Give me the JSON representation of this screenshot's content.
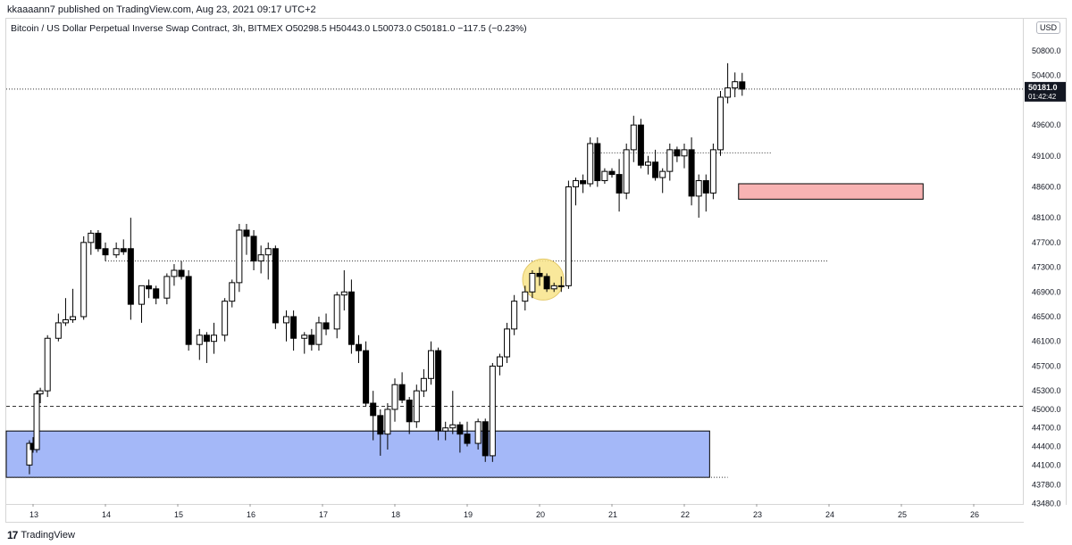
{
  "header": {
    "published": "kkaaaann7 published on TradingView.com, Aug 23, 2021 09:17 UTC+2"
  },
  "symbol": {
    "title": "Bitcoin / US Dollar Perpetual Inverse Swap Contract, 3h, BITMEX  O50298.5  H50443.0  L50073.0  C50181.0  −117.5 (−0.23%)"
  },
  "currency_badge": "USD",
  "footer": {
    "brand": "TradingView",
    "logo_icon": "tradingview-logo-icon"
  },
  "chart_data": {
    "type": "candlestick",
    "x_ticks": [
      "13",
      "14",
      "15",
      "16",
      "17",
      "18",
      "19",
      "20",
      "21",
      "22",
      "23",
      "24",
      "25",
      "26"
    ],
    "y_ticks": [
      50800.0,
      50400.0,
      49600.0,
      49100.0,
      48600.0,
      48100.0,
      47700.0,
      47300.0,
      46900.0,
      46500.0,
      46100.0,
      45700.0,
      45300.0,
      45000.0,
      44700.0,
      44400.0,
      44100.0,
      43780.0,
      43480.0
    ],
    "y_tick_labels": [
      "50800.0",
      "50400.0",
      "49600.0",
      "49100.0",
      "48600.0",
      "48100.0",
      "47700.0",
      "47300.0",
      "46900.0",
      "46500.0",
      "46100.0",
      "45700.0",
      "45300.0",
      "45000.0",
      "44700.0",
      "44400.0",
      "44100.0",
      "43780.0",
      "43480.0"
    ],
    "last_price": {
      "value": 50181.0,
      "label": "50181.0",
      "countdown": "01:42:42"
    },
    "colors": {
      "up": "#ffffff",
      "down": "#000000",
      "outline": "#000000",
      "demand_zone": "#a4b8f8",
      "supply_zone": "#f8b3b3",
      "highlight": "#f8e48a"
    },
    "candles": [
      {
        "x": 12.95,
        "o": 44100,
        "h": 44500,
        "l": 43950,
        "c": 44450
      },
      {
        "x": 13.0,
        "o": 44450,
        "h": 44550,
        "l": 44300,
        "c": 44350
      },
      {
        "x": 13.05,
        "o": 44350,
        "h": 45300,
        "l": 44300,
        "c": 45250
      },
      {
        "x": 13.1,
        "o": 45250,
        "h": 45350,
        "l": 45100,
        "c": 45300
      },
      {
        "x": 13.2,
        "o": 45300,
        "h": 46200,
        "l": 45200,
        "c": 46150
      },
      {
        "x": 13.35,
        "o": 46150,
        "h": 46550,
        "l": 46100,
        "c": 46400
      },
      {
        "x": 13.45,
        "o": 46400,
        "h": 46800,
        "l": 46350,
        "c": 46450
      },
      {
        "x": 13.55,
        "o": 46450,
        "h": 46950,
        "l": 46400,
        "c": 46500
      },
      {
        "x": 13.7,
        "o": 46500,
        "h": 47800,
        "l": 46450,
        "c": 47700
      },
      {
        "x": 13.8,
        "o": 47700,
        "h": 47900,
        "l": 47500,
        "c": 47850
      },
      {
        "x": 13.9,
        "o": 47850,
        "h": 47900,
        "l": 47550,
        "c": 47600
      },
      {
        "x": 14.0,
        "o": 47600,
        "h": 47700,
        "l": 47400,
        "c": 47500
      },
      {
        "x": 14.15,
        "o": 47500,
        "h": 47700,
        "l": 47450,
        "c": 47600
      },
      {
        "x": 14.25,
        "o": 47600,
        "h": 47750,
        "l": 47500,
        "c": 47550
      },
      {
        "x": 14.35,
        "o": 47600,
        "h": 48100,
        "l": 46450,
        "c": 46700
      },
      {
        "x": 14.5,
        "o": 46700,
        "h": 47000,
        "l": 46400,
        "c": 47000
      },
      {
        "x": 14.6,
        "o": 47000,
        "h": 47100,
        "l": 46800,
        "c": 46950
      },
      {
        "x": 14.7,
        "o": 46950,
        "h": 47000,
        "l": 46700,
        "c": 46800
      },
      {
        "x": 14.85,
        "o": 46800,
        "h": 47200,
        "l": 46700,
        "c": 47150
      },
      {
        "x": 14.95,
        "o": 47150,
        "h": 47350,
        "l": 47000,
        "c": 47250
      },
      {
        "x": 15.05,
        "o": 47250,
        "h": 47400,
        "l": 47100,
        "c": 47150
      },
      {
        "x": 15.15,
        "o": 47150,
        "h": 47250,
        "l": 45950,
        "c": 46050
      },
      {
        "x": 15.3,
        "o": 46050,
        "h": 46300,
        "l": 45800,
        "c": 46200
      },
      {
        "x": 15.4,
        "o": 46200,
        "h": 46250,
        "l": 45750,
        "c": 46100
      },
      {
        "x": 15.5,
        "o": 46100,
        "h": 46400,
        "l": 45900,
        "c": 46200
      },
      {
        "x": 15.65,
        "o": 46200,
        "h": 46800,
        "l": 46100,
        "c": 46750
      },
      {
        "x": 15.75,
        "o": 46750,
        "h": 47100,
        "l": 46650,
        "c": 47050
      },
      {
        "x": 15.85,
        "o": 47050,
        "h": 48000,
        "l": 46900,
        "c": 47900
      },
      {
        "x": 15.95,
        "o": 47900,
        "h": 48000,
        "l": 47500,
        "c": 47800
      },
      {
        "x": 16.05,
        "o": 47800,
        "h": 47900,
        "l": 47250,
        "c": 47400
      },
      {
        "x": 16.15,
        "o": 47400,
        "h": 47650,
        "l": 47200,
        "c": 47500
      },
      {
        "x": 16.25,
        "o": 47500,
        "h": 47700,
        "l": 47100,
        "c": 47600
      },
      {
        "x": 16.35,
        "o": 47600,
        "h": 47650,
        "l": 46300,
        "c": 46400
      },
      {
        "x": 16.5,
        "o": 46400,
        "h": 46600,
        "l": 46100,
        "c": 46500
      },
      {
        "x": 16.6,
        "o": 46500,
        "h": 46600,
        "l": 45950,
        "c": 46150
      },
      {
        "x": 16.75,
        "o": 46150,
        "h": 46250,
        "l": 45900,
        "c": 46200
      },
      {
        "x": 16.85,
        "o": 46200,
        "h": 46300,
        "l": 45950,
        "c": 46050
      },
      {
        "x": 16.95,
        "o": 46050,
        "h": 46500,
        "l": 45950,
        "c": 46400
      },
      {
        "x": 17.05,
        "o": 46400,
        "h": 46550,
        "l": 46200,
        "c": 46300
      },
      {
        "x": 17.2,
        "o": 46300,
        "h": 46900,
        "l": 46150,
        "c": 46850
      },
      {
        "x": 17.3,
        "o": 46850,
        "h": 47250,
        "l": 46600,
        "c": 46900
      },
      {
        "x": 17.4,
        "o": 46900,
        "h": 47100,
        "l": 45900,
        "c": 46050
      },
      {
        "x": 17.5,
        "o": 46050,
        "h": 46200,
        "l": 45750,
        "c": 45950
      },
      {
        "x": 17.6,
        "o": 45950,
        "h": 46100,
        "l": 45050,
        "c": 45100
      },
      {
        "x": 17.7,
        "o": 45100,
        "h": 45300,
        "l": 44500,
        "c": 44900
      },
      {
        "x": 17.8,
        "o": 44900,
        "h": 45000,
        "l": 44250,
        "c": 44600
      },
      {
        "x": 17.9,
        "o": 44600,
        "h": 45100,
        "l": 44350,
        "c": 45000
      },
      {
        "x": 18.0,
        "o": 45000,
        "h": 45500,
        "l": 44800,
        "c": 45400
      },
      {
        "x": 18.1,
        "o": 45400,
        "h": 45600,
        "l": 45100,
        "c": 45150
      },
      {
        "x": 18.2,
        "o": 45150,
        "h": 45200,
        "l": 44600,
        "c": 44800
      },
      {
        "x": 18.3,
        "o": 44800,
        "h": 45400,
        "l": 44700,
        "c": 45300
      },
      {
        "x": 18.4,
        "o": 45300,
        "h": 45650,
        "l": 45200,
        "c": 45500
      },
      {
        "x": 18.5,
        "o": 45500,
        "h": 46100,
        "l": 45400,
        "c": 45950
      },
      {
        "x": 18.6,
        "o": 45950,
        "h": 46000,
        "l": 44500,
        "c": 44650
      },
      {
        "x": 18.7,
        "o": 44650,
        "h": 44800,
        "l": 44500,
        "c": 44700
      },
      {
        "x": 18.8,
        "o": 44700,
        "h": 45300,
        "l": 44600,
        "c": 44750
      },
      {
        "x": 18.9,
        "o": 44750,
        "h": 44800,
        "l": 44300,
        "c": 44600
      },
      {
        "x": 19.0,
        "o": 44600,
        "h": 44800,
        "l": 44400,
        "c": 44450
      },
      {
        "x": 19.15,
        "o": 44450,
        "h": 44850,
        "l": 44350,
        "c": 44800
      },
      {
        "x": 19.25,
        "o": 44800,
        "h": 44850,
        "l": 44150,
        "c": 44250
      },
      {
        "x": 19.35,
        "o": 44250,
        "h": 45750,
        "l": 44150,
        "c": 45700
      },
      {
        "x": 19.45,
        "o": 45700,
        "h": 45900,
        "l": 45550,
        "c": 45850
      },
      {
        "x": 19.55,
        "o": 45850,
        "h": 46400,
        "l": 45750,
        "c": 46300
      },
      {
        "x": 19.65,
        "o": 46300,
        "h": 46850,
        "l": 46200,
        "c": 46750
      },
      {
        "x": 19.8,
        "o": 46750,
        "h": 47000,
        "l": 46600,
        "c": 46900
      },
      {
        "x": 19.9,
        "o": 46900,
        "h": 47250,
        "l": 46800,
        "c": 47200
      },
      {
        "x": 20.0,
        "o": 47200,
        "h": 47300,
        "l": 47000,
        "c": 47150
      },
      {
        "x": 20.1,
        "o": 47150,
        "h": 47200,
        "l": 46900,
        "c": 46950
      },
      {
        "x": 20.2,
        "o": 46950,
        "h": 47050,
        "l": 46900,
        "c": 47000
      },
      {
        "x": 20.3,
        "o": 47000,
        "h": 47150,
        "l": 46900,
        "c": 47000
      },
      {
        "x": 20.4,
        "o": 47000,
        "h": 48700,
        "l": 46950,
        "c": 48600
      },
      {
        "x": 20.5,
        "o": 48600,
        "h": 48750,
        "l": 48300,
        "c": 48700
      },
      {
        "x": 20.6,
        "o": 48700,
        "h": 48800,
        "l": 48500,
        "c": 48650
      },
      {
        "x": 20.7,
        "o": 48650,
        "h": 49400,
        "l": 48600,
        "c": 49300
      },
      {
        "x": 20.8,
        "o": 49300,
        "h": 49400,
        "l": 48600,
        "c": 48700
      },
      {
        "x": 20.9,
        "o": 48700,
        "h": 48900,
        "l": 48650,
        "c": 48850
      },
      {
        "x": 21.0,
        "o": 48850,
        "h": 48900,
        "l": 48750,
        "c": 48800
      },
      {
        "x": 21.1,
        "o": 48800,
        "h": 49050,
        "l": 48200,
        "c": 48500
      },
      {
        "x": 21.2,
        "o": 48500,
        "h": 49300,
        "l": 48400,
        "c": 49200
      },
      {
        "x": 21.3,
        "o": 49200,
        "h": 49750,
        "l": 49000,
        "c": 49600
      },
      {
        "x": 21.4,
        "o": 49600,
        "h": 49700,
        "l": 48900,
        "c": 48950
      },
      {
        "x": 21.5,
        "o": 48950,
        "h": 49100,
        "l": 48800,
        "c": 49000
      },
      {
        "x": 21.6,
        "o": 49000,
        "h": 49200,
        "l": 48700,
        "c": 48750
      },
      {
        "x": 21.7,
        "o": 48750,
        "h": 48900,
        "l": 48500,
        "c": 48850
      },
      {
        "x": 21.8,
        "o": 48850,
        "h": 49300,
        "l": 48700,
        "c": 49200
      },
      {
        "x": 21.9,
        "o": 49200,
        "h": 49250,
        "l": 49000,
        "c": 49100
      },
      {
        "x": 22.0,
        "o": 49100,
        "h": 49300,
        "l": 48900,
        "c": 49200
      },
      {
        "x": 22.1,
        "o": 49200,
        "h": 49400,
        "l": 48300,
        "c": 48450
      },
      {
        "x": 22.2,
        "o": 48450,
        "h": 48800,
        "l": 48100,
        "c": 48700
      },
      {
        "x": 22.3,
        "o": 48700,
        "h": 48800,
        "l": 48200,
        "c": 48500
      },
      {
        "x": 22.4,
        "o": 48500,
        "h": 49300,
        "l": 48400,
        "c": 49200
      },
      {
        "x": 22.5,
        "o": 49200,
        "h": 50150,
        "l": 49100,
        "c": 50050
      },
      {
        "x": 22.6,
        "o": 50050,
        "h": 50600,
        "l": 49950,
        "c": 50200
      },
      {
        "x": 22.7,
        "o": 50200,
        "h": 50450,
        "l": 50050,
        "c": 50300
      },
      {
        "x": 22.8,
        "o": 50298.5,
        "h": 50443,
        "l": 50073,
        "c": 50181
      }
    ],
    "levels": [
      {
        "y": 50181,
        "style": "dotted",
        "x_from": "left",
        "x_to": "axis"
      },
      {
        "y": 49150,
        "style": "dotted",
        "x_from": 20.7,
        "x_to": 23.2
      },
      {
        "y": 47400,
        "style": "dotted",
        "x_from": 14.0,
        "x_to": 24.0
      },
      {
        "y": 45050,
        "style": "dashed",
        "x_from": "left",
        "x_to": "axis"
      },
      {
        "y": 43900,
        "style": "dotted",
        "x_from": "left",
        "x_to": 22.6
      }
    ],
    "zones": [
      {
        "name": "demand-zone",
        "x_from": "left",
        "x_to": 22.35,
        "y_from": 43900,
        "y_to": 44650,
        "color": "#a4b8f8"
      },
      {
        "name": "supply-zone",
        "x_from": 22.75,
        "x_to": 25.3,
        "y_from": 48400,
        "y_to": 48650,
        "color": "#f8b3b3"
      }
    ],
    "highlight": {
      "x": 20.05,
      "y": 47100,
      "color": "#f8e48a"
    }
  }
}
